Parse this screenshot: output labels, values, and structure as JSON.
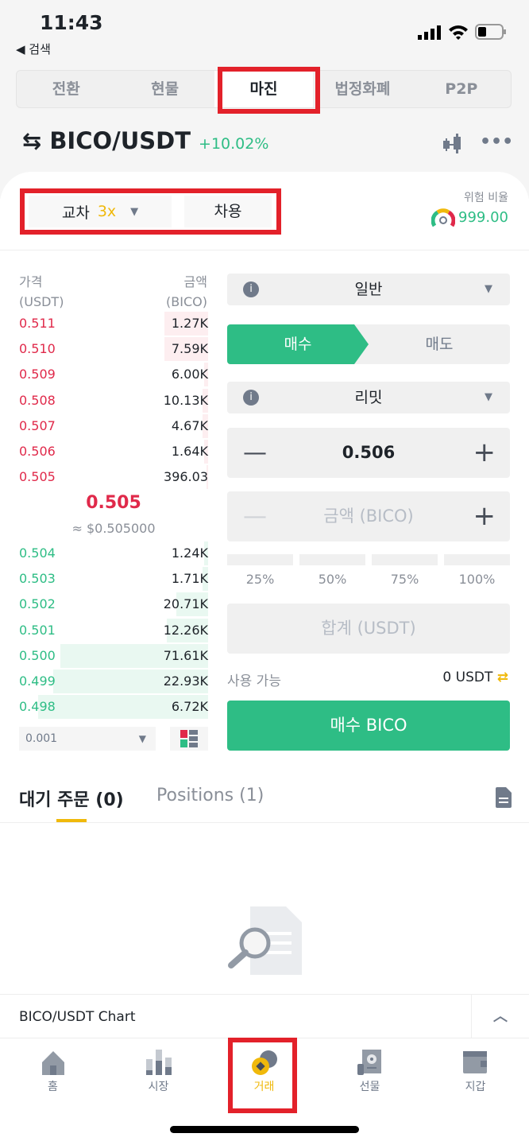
{
  "status": {
    "time": "11:43",
    "back": "◀ 검색"
  },
  "tabs": [
    {
      "label": "전환"
    },
    {
      "label": "현물"
    },
    {
      "label": "마진",
      "active": true
    },
    {
      "label": "법정화폐"
    },
    {
      "label": "P2P"
    }
  ],
  "pair": {
    "name": "BICO/USDT",
    "change": "+10.02%"
  },
  "margin": {
    "mode": "교차",
    "leverage": "3x",
    "borrow": "차용",
    "risk_label": "위험 비율",
    "risk_value": "999.00"
  },
  "orderbook": {
    "price_header": "가격",
    "price_unit": "(USDT)",
    "amount_header": "금액",
    "amount_unit": "(BICO)",
    "asks": [
      {
        "p": "0.511",
        "a": "1.27K",
        "d": 0.23
      },
      {
        "p": "0.510",
        "a": "7.59K",
        "d": 0.23
      },
      {
        "p": "0.509",
        "a": "6.00K",
        "d": 0.02
      },
      {
        "p": "0.508",
        "a": "10.13K",
        "d": 0.03
      },
      {
        "p": "0.507",
        "a": "4.67K",
        "d": 0.03
      },
      {
        "p": "0.506",
        "a": "1.64K",
        "d": 0.02
      },
      {
        "p": "0.505",
        "a": "396.03",
        "d": 0.01
      }
    ],
    "last": "0.505",
    "last_usd": "≈ $0.505000",
    "bids": [
      {
        "p": "0.504",
        "a": "1.24K",
        "d": 0.02
      },
      {
        "p": "0.503",
        "a": "1.71K",
        "d": 0.03
      },
      {
        "p": "0.502",
        "a": "20.71K",
        "d": 0.17
      },
      {
        "p": "0.501",
        "a": "12.26K",
        "d": 0.22
      },
      {
        "p": "0.500",
        "a": "71.61K",
        "d": 0.78
      },
      {
        "p": "0.499",
        "a": "22.93K",
        "d": 0.82
      },
      {
        "p": "0.498",
        "a": "6.72K",
        "d": 0.9
      }
    ],
    "tick": "0.001"
  },
  "form": {
    "type": "일반",
    "buy": "매수",
    "sell": "매도",
    "order_type": "리밋",
    "price": "0.506",
    "amount_placeholder": "금액 (BICO)",
    "percents": [
      "25%",
      "50%",
      "75%",
      "100%"
    ],
    "total_placeholder": "합계 (USDT)",
    "available_label": "사용 가능",
    "available_value": "0 USDT",
    "submit": "매수 BICO"
  },
  "orders": {
    "tab1": "대기 주문 (0)",
    "tab2": "Positions (1)"
  },
  "chart_bar": "BICO/USDT Chart",
  "nav": [
    {
      "label": "홈"
    },
    {
      "label": "시장"
    },
    {
      "label": "거래",
      "active": true
    },
    {
      "label": "선물"
    },
    {
      "label": "지갑"
    }
  ],
  "colors": {
    "green": "#2ebd85",
    "red": "#e0294a",
    "yellow": "#f0b90b",
    "annotation": "#e3212a"
  }
}
